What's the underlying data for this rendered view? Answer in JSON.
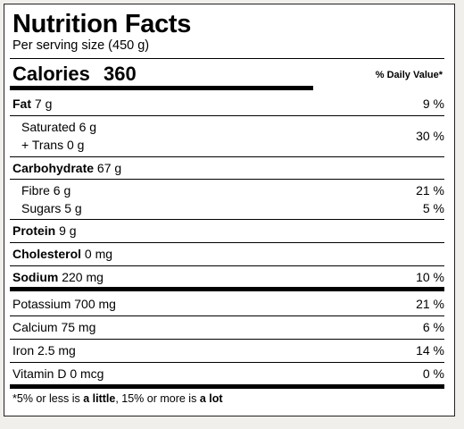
{
  "title": "Nutrition Facts",
  "serving": "Per serving size (450 g)",
  "calories_label": "Calories",
  "calories_value": "360",
  "dv_header": "% Daily Value*",
  "rows": {
    "fat": {
      "name": "Fat",
      "amount": "7 g",
      "dv": "9 %"
    },
    "saturated": {
      "name": "Saturated",
      "amount": "6 g"
    },
    "trans": {
      "name": "+ Trans",
      "amount": "0 g"
    },
    "sat_trans_dv": "30 %",
    "carbohydrate": {
      "name": "Carbohydrate",
      "amount": "67 g"
    },
    "fibre": {
      "name": "Fibre",
      "amount": "6 g",
      "dv": "21 %"
    },
    "sugars": {
      "name": "Sugars",
      "amount": "5 g",
      "dv": "5 %"
    },
    "protein": {
      "name": "Protein",
      "amount": "9 g"
    },
    "cholesterol": {
      "name": "Cholesterol",
      "amount": "0 mg"
    },
    "sodium": {
      "name": "Sodium",
      "amount": "220 mg",
      "dv": "10 %"
    },
    "potassium": {
      "name": "Potassium",
      "amount": "700 mg",
      "dv": "21 %"
    },
    "calcium": {
      "name": "Calcium",
      "amount": "75 mg",
      "dv": "6 %"
    },
    "iron": {
      "name": "Iron",
      "amount": "2.5 mg",
      "dv": "14 %"
    },
    "vitamin_d": {
      "name": "Vitamin D",
      "amount": "0 mcg",
      "dv": "0 %"
    }
  },
  "footnote": {
    "part1": "*5% or less is ",
    "little": "a little",
    "part2": ", 15% or more is ",
    "lot": "a lot"
  }
}
